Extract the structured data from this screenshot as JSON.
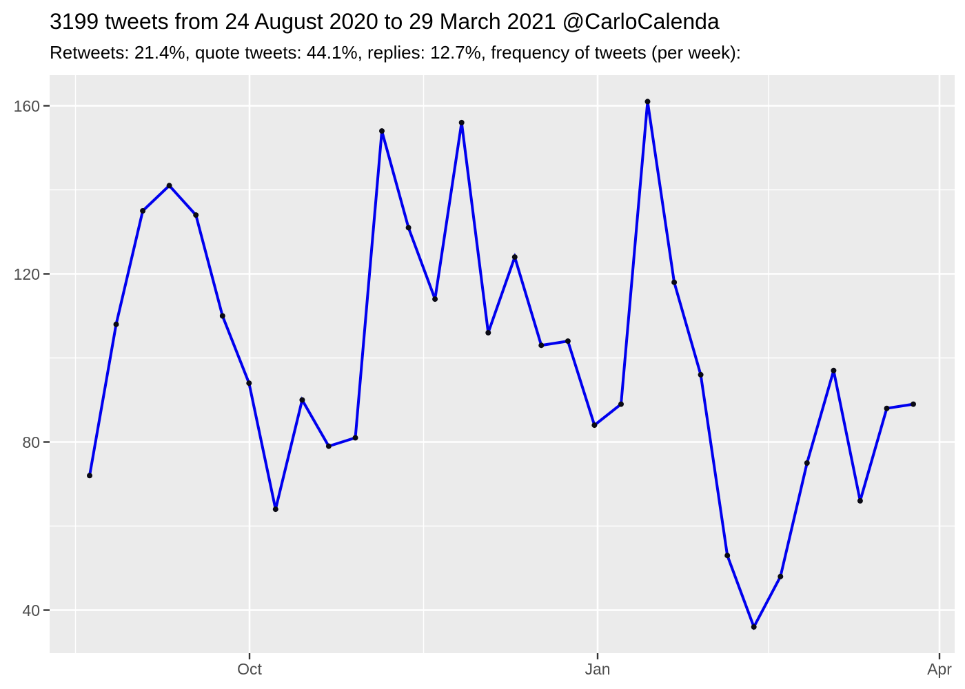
{
  "header": {
    "title": "3199 tweets from 24 August 2020 to 29 March 2021 @CarloCalenda",
    "subtitle": "Retweets: 21.4%, quote tweets: 44.1%, replies: 12.7%, frequency of tweets (per week):"
  },
  "chart_data": {
    "type": "line",
    "title": "3199 tweets from 24 August 2020 to 29 March 2021 @CarloCalenda",
    "subtitle": "Retweets: 21.4%, quote tweets: 44.1%, replies: 12.7%, frequency of tweets (per week):",
    "series_name": "tweets per week",
    "xlabel": "",
    "ylabel": "",
    "x_weeks": [
      "2020-08-24",
      "2020-08-31",
      "2020-09-07",
      "2020-09-14",
      "2020-09-21",
      "2020-09-28",
      "2020-10-05",
      "2020-10-12",
      "2020-10-19",
      "2020-10-26",
      "2020-11-02",
      "2020-11-09",
      "2020-11-16",
      "2020-11-23",
      "2020-11-30",
      "2020-12-07",
      "2020-12-14",
      "2020-12-21",
      "2020-12-28",
      "2021-01-04",
      "2021-01-11",
      "2021-01-18",
      "2021-01-25",
      "2021-02-01",
      "2021-02-08",
      "2021-02-15",
      "2021-02-22",
      "2021-03-01",
      "2021-03-08",
      "2021-03-15",
      "2021-03-22",
      "2021-03-29"
    ],
    "values": [
      72,
      108,
      135,
      141,
      134,
      110,
      94,
      64,
      90,
      79,
      81,
      154,
      131,
      114,
      156,
      106,
      124,
      103,
      104,
      84,
      89,
      161,
      118,
      96,
      53,
      36,
      48,
      75,
      97,
      66,
      88,
      89
    ],
    "x_tick_labels": [
      "Oct",
      "Jan",
      "Apr"
    ],
    "y_tick_values": [
      160,
      120,
      80,
      40
    ],
    "y_minor_tick_values": [
      140,
      100,
      60
    ],
    "ylim": [
      30,
      167
    ],
    "grid": "white major and minor gridlines on gray panel",
    "legend": "none",
    "colors": {
      "line": "#0000EE",
      "point": "#0A0A14",
      "panel_background": "#EBEBEB",
      "gridline": "#FFFFFF",
      "axis_text": "#4D4D4D",
      "tick_mark": "#333333",
      "title_text": "#000000"
    }
  }
}
